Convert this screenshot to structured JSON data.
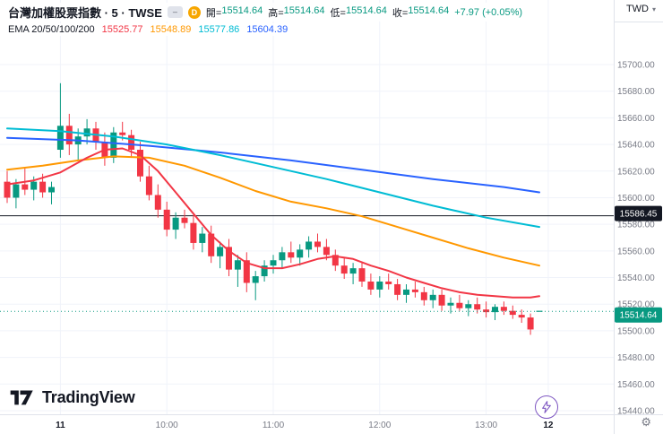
{
  "colors": {
    "up": "#089981",
    "down": "#f23645",
    "ema20": "#f23645",
    "ema50": "#ff9800",
    "ema100": "#00bcd4",
    "ema200": "#2962ff",
    "grid": "#f0f3fa",
    "separator": "#e0e3eb",
    "axis_text": "#787b86",
    "dark_text": "#131722",
    "black_line": "#131722",
    "accent_purple": "#7e57c2"
  },
  "header": {
    "symbol_title": "台灣加權股票指數 · 5 · TWSE",
    "mode_icon": "–",
    "delayed_badge": "D",
    "ohlc": [
      {
        "label": "開",
        "value": "15514.64"
      },
      {
        "label": "高",
        "value": "15514.64"
      },
      {
        "label": "低",
        "value": "15514.64"
      },
      {
        "label": "收",
        "value": "15514.64"
      }
    ],
    "change": "+7.97 (+0.05%)",
    "indicator": {
      "name": "EMA 20/50/100/200",
      "values": [
        {
          "text": "15525.77",
          "color": "#f23645"
        },
        {
          "text": "15548.89",
          "color": "#ff9800"
        },
        {
          "text": "15577.86",
          "color": "#00bcd4"
        },
        {
          "text": "15604.39",
          "color": "#2962ff"
        }
      ]
    }
  },
  "price_axis": {
    "currency": "TWD",
    "labels": [
      {
        "text": "15586.45",
        "bg": "#131722",
        "fg": "#ffffff"
      },
      {
        "text": "15514.64",
        "bg": "#089981",
        "fg": "#ffffff"
      }
    ]
  },
  "time_axis": {
    "labels": [
      {
        "text": "11",
        "bar": 6,
        "style": "day"
      },
      {
        "text": "10:00",
        "bar": 18,
        "style": "hour"
      },
      {
        "text": "11:00",
        "bar": 30,
        "style": "hour"
      },
      {
        "text": "12:00",
        "bar": 42,
        "style": "hour"
      },
      {
        "text": "13:00",
        "bar": 54,
        "style": "hour"
      },
      {
        "text": "12",
        "bar": 61,
        "style": "day"
      }
    ]
  },
  "footer": {
    "logo": "TradingView"
  },
  "chart_data": {
    "type": "candlestick",
    "symbol": "台灣加權股票指數",
    "exchange": "TWSE",
    "interval": "5",
    "currency": "TWD",
    "last_price": 15514.64,
    "change": "+7.97 (+0.05%)",
    "y_axis": {
      "min": 15440,
      "max": 15700,
      "tick_step": 20,
      "tick_format_decimals": 2
    },
    "grid": true,
    "bars_ohlc": [
      [
        15612,
        15620,
        15596,
        15600
      ],
      [
        15600,
        15614,
        15592,
        15610
      ],
      [
        15610,
        15622,
        15602,
        15606
      ],
      [
        15606,
        15616,
        15598,
        15612
      ],
      [
        15612,
        15618,
        15600,
        15604
      ],
      [
        15604,
        15612,
        15595,
        15608
      ],
      [
        15636,
        15686,
        15630,
        15654
      ],
      [
        15654,
        15663,
        15632,
        15640
      ],
      [
        15640,
        15652,
        15628,
        15646
      ],
      [
        15646,
        15659,
        15640,
        15652
      ],
      [
        15652,
        15657,
        15636,
        15642
      ],
      [
        15642,
        15649,
        15624,
        15630
      ],
      [
        15630,
        15653,
        15626,
        15649
      ],
      [
        15649,
        15657,
        15643,
        15647
      ],
      [
        15647,
        15651,
        15631,
        15636
      ],
      [
        15636,
        15642,
        15612,
        15616
      ],
      [
        15616,
        15624,
        15598,
        15602
      ],
      [
        15602,
        15610,
        15585,
        15591
      ],
      [
        15591,
        15597,
        15571,
        15576
      ],
      [
        15576,
        15589,
        15569,
        15585
      ],
      [
        15585,
        15591,
        15577,
        15581
      ],
      [
        15581,
        15587,
        15561,
        15566
      ],
      [
        15566,
        15578,
        15559,
        15573
      ],
      [
        15573,
        15579,
        15551,
        15556
      ],
      [
        15556,
        15567,
        15547,
        15563
      ],
      [
        15563,
        15569,
        15541,
        15546
      ],
      [
        15546,
        15557,
        15533,
        15553
      ],
      [
        15553,
        15559,
        15529,
        15536
      ],
      [
        15536,
        15545,
        15523,
        15541
      ],
      [
        15541,
        15553,
        15537,
        15549
      ],
      [
        15549,
        15557,
        15543,
        15553
      ],
      [
        15553,
        15563,
        15547,
        15559
      ],
      [
        15559,
        15567,
        15551,
        15555
      ],
      [
        15555,
        15565,
        15549,
        15561
      ],
      [
        15561,
        15571,
        15555,
        15567
      ],
      [
        15567,
        15573,
        15559,
        15563
      ],
      [
        15563,
        15569,
        15553,
        15557
      ],
      [
        15557,
        15561,
        15545,
        15549
      ],
      [
        15549,
        15555,
        15539,
        15543
      ],
      [
        15543,
        15551,
        15535,
        15547
      ],
      [
        15547,
        15551,
        15533,
        15537
      ],
      [
        15537,
        15543,
        15527,
        15531
      ],
      [
        15531,
        15541,
        15525,
        15537
      ],
      [
        15537,
        15543,
        15531,
        15535
      ],
      [
        15535,
        15539,
        15523,
        15527
      ],
      [
        15527,
        15535,
        15521,
        15531
      ],
      [
        15531,
        15537,
        15525,
        15529
      ],
      [
        15529,
        15533,
        15519,
        15523
      ],
      [
        15523,
        15531,
        15517,
        15527
      ],
      [
        15527,
        15531,
        15515,
        15519
      ],
      [
        15519,
        15525,
        15513,
        15521
      ],
      [
        15521,
        15527,
        15515,
        15517
      ],
      [
        15517,
        15523,
        15511,
        15520
      ],
      [
        15520,
        15525,
        15513,
        15516
      ],
      [
        15516,
        15522,
        15510,
        15514
      ],
      [
        15514,
        15520,
        15508,
        15518
      ],
      [
        15518,
        15522,
        15512,
        15515
      ],
      [
        15515,
        15519,
        15509,
        15512
      ],
      [
        15512,
        15516,
        15506,
        15510
      ],
      [
        15510,
        15513,
        15497,
        15501
      ],
      [
        15514.64,
        15514.64,
        15514.64,
        15514.64
      ]
    ],
    "series": [
      {
        "name": "EMA 200",
        "color": "#2962ff",
        "current": 15604.39,
        "points": [
          [
            0,
            15645
          ],
          [
            8,
            15643
          ],
          [
            16,
            15639
          ],
          [
            24,
            15634
          ],
          [
            32,
            15628
          ],
          [
            40,
            15621
          ],
          [
            48,
            15614
          ],
          [
            56,
            15608
          ],
          [
            60,
            15604
          ]
        ]
      },
      {
        "name": "EMA 100",
        "color": "#00bcd4",
        "current": 15577.86,
        "points": [
          [
            0,
            15652
          ],
          [
            6,
            15650
          ],
          [
            12,
            15646
          ],
          [
            18,
            15640
          ],
          [
            24,
            15632
          ],
          [
            30,
            15623
          ],
          [
            36,
            15614
          ],
          [
            42,
            15604
          ],
          [
            48,
            15594
          ],
          [
            54,
            15585
          ],
          [
            60,
            15578
          ]
        ]
      },
      {
        "name": "EMA 50",
        "color": "#ff9800",
        "current": 15548.89,
        "points": [
          [
            0,
            15621
          ],
          [
            4,
            15624
          ],
          [
            8,
            15628
          ],
          [
            12,
            15631
          ],
          [
            16,
            15630
          ],
          [
            20,
            15624
          ],
          [
            24,
            15615
          ],
          [
            28,
            15605
          ],
          [
            32,
            15597
          ],
          [
            36,
            15592
          ],
          [
            40,
            15586
          ],
          [
            44,
            15578
          ],
          [
            48,
            15570
          ],
          [
            52,
            15562
          ],
          [
            56,
            15555
          ],
          [
            60,
            15549
          ]
        ]
      },
      {
        "name": "EMA 20",
        "color": "#f23645",
        "current": 15525.77,
        "points": [
          [
            0,
            15610
          ],
          [
            3,
            15613
          ],
          [
            6,
            15619
          ],
          [
            9,
            15630
          ],
          [
            11,
            15636
          ],
          [
            13,
            15637
          ],
          [
            15,
            15632
          ],
          [
            17,
            15620
          ],
          [
            19,
            15604
          ],
          [
            21,
            15588
          ],
          [
            23,
            15572
          ],
          [
            25,
            15560
          ],
          [
            27,
            15551
          ],
          [
            29,
            15547
          ],
          [
            31,
            15547
          ],
          [
            33,
            15550
          ],
          [
            35,
            15554
          ],
          [
            37,
            15556
          ],
          [
            39,
            15554
          ],
          [
            41,
            15549
          ],
          [
            43,
            15545
          ],
          [
            45,
            15540
          ],
          [
            47,
            15536
          ],
          [
            49,
            15532
          ],
          [
            51,
            15529
          ],
          [
            53,
            15527
          ],
          [
            55,
            15526
          ],
          [
            57,
            15525
          ],
          [
            59,
            15525
          ],
          [
            60,
            15526
          ]
        ]
      }
    ],
    "levels": [
      {
        "price": 15586.45,
        "style": "solid",
        "color": "#131722",
        "label_bg": "#131722",
        "label_dy": -2.5
      },
      {
        "price": 15514.64,
        "style": "dotted",
        "color": "#089981",
        "label_bg": "#089981",
        "label_dy": 4
      }
    ]
  }
}
